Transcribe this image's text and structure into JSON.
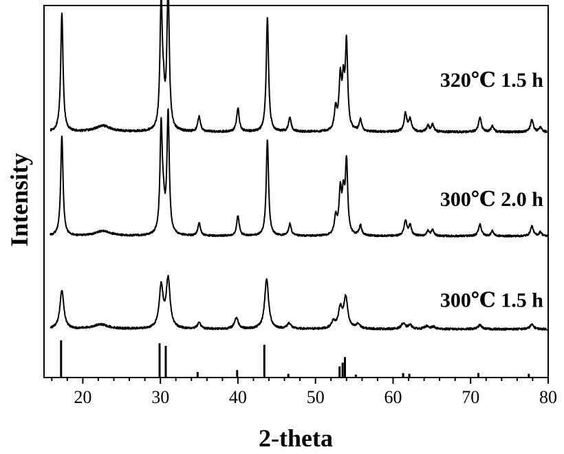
{
  "chart_data": {
    "type": "line",
    "title": "",
    "xlabel": "2-theta",
    "ylabel": "Intensity",
    "xlim": [
      15,
      80
    ],
    "xticks": [
      20,
      30,
      40,
      50,
      60,
      70,
      80
    ],
    "grid": false,
    "legend": "none",
    "series": [
      {
        "name": "320℃ 1.5 h",
        "label": "320℃ 1.5 h",
        "offset": 0.66,
        "amplitude": 0.32,
        "baseline_noise": 0.003,
        "peaks": [
          [
            17.3,
            1.0,
            0.18
          ],
          [
            22.6,
            0.05,
            1.2
          ],
          [
            30.1,
            1.06,
            0.18
          ],
          [
            30.4,
            0.22,
            0.2
          ],
          [
            31.0,
            1.2,
            0.18
          ],
          [
            35.0,
            0.13,
            0.2
          ],
          [
            40.0,
            0.2,
            0.2
          ],
          [
            43.8,
            0.96,
            0.18
          ],
          [
            46.7,
            0.12,
            0.2
          ],
          [
            52.6,
            0.18,
            0.2
          ],
          [
            53.2,
            0.42,
            0.2
          ],
          [
            53.6,
            0.35,
            0.18
          ],
          [
            54.0,
            0.72,
            0.18
          ],
          [
            55.8,
            0.1,
            0.2
          ],
          [
            61.6,
            0.15,
            0.22
          ],
          [
            62.2,
            0.1,
            0.22
          ],
          [
            64.5,
            0.05,
            0.2
          ],
          [
            65.1,
            0.06,
            0.2
          ],
          [
            71.2,
            0.12,
            0.22
          ],
          [
            72.8,
            0.05,
            0.2
          ],
          [
            77.9,
            0.1,
            0.22
          ],
          [
            79.0,
            0.04,
            0.2
          ]
        ]
      },
      {
        "name": "300℃ 2.0 h",
        "label": "300℃ 2.0 h",
        "offset": 0.38,
        "amplitude": 0.27,
        "baseline_noise": 0.003,
        "peaks": [
          [
            17.3,
            1.0,
            0.18
          ],
          [
            22.6,
            0.05,
            1.2
          ],
          [
            30.1,
            1.06,
            0.18
          ],
          [
            30.4,
            0.22,
            0.2
          ],
          [
            31.0,
            1.2,
            0.18
          ],
          [
            35.0,
            0.13,
            0.2
          ],
          [
            40.0,
            0.2,
            0.2
          ],
          [
            43.8,
            0.96,
            0.18
          ],
          [
            46.7,
            0.12,
            0.2
          ],
          [
            52.6,
            0.18,
            0.2
          ],
          [
            53.2,
            0.42,
            0.2
          ],
          [
            53.6,
            0.35,
            0.18
          ],
          [
            54.0,
            0.72,
            0.18
          ],
          [
            55.8,
            0.1,
            0.2
          ],
          [
            61.6,
            0.15,
            0.22
          ],
          [
            62.2,
            0.1,
            0.22
          ],
          [
            64.5,
            0.05,
            0.2
          ],
          [
            65.1,
            0.06,
            0.2
          ],
          [
            71.2,
            0.12,
            0.22
          ],
          [
            72.8,
            0.05,
            0.2
          ],
          [
            77.9,
            0.1,
            0.22
          ],
          [
            79.0,
            0.04,
            0.2
          ]
        ]
      },
      {
        "name": "300℃ 1.5 h",
        "label": "300℃ 1.5 h",
        "offset": 0.13,
        "amplitude": 0.15,
        "baseline_noise": 0.006,
        "peaks": [
          [
            17.3,
            0.7,
            0.3
          ],
          [
            22.3,
            0.08,
            1.2
          ],
          [
            30.1,
            0.75,
            0.3
          ],
          [
            31.0,
            0.88,
            0.3
          ],
          [
            35.0,
            0.1,
            0.3
          ],
          [
            39.8,
            0.2,
            0.3
          ],
          [
            43.7,
            0.9,
            0.3
          ],
          [
            46.6,
            0.1,
            0.3
          ],
          [
            52.3,
            0.12,
            0.3
          ],
          [
            53.2,
            0.35,
            0.3
          ],
          [
            53.9,
            0.55,
            0.3
          ],
          [
            55.5,
            0.08,
            0.3
          ],
          [
            61.3,
            0.1,
            0.3
          ],
          [
            62.2,
            0.07,
            0.3
          ],
          [
            64.3,
            0.05,
            0.3
          ],
          [
            65.2,
            0.04,
            0.3
          ],
          [
            71.2,
            0.07,
            0.3
          ],
          [
            77.9,
            0.08,
            0.3
          ]
        ]
      }
    ],
    "reference_lines": {
      "base": 0.0,
      "top": 0.1,
      "sticks": [
        [
          17.2,
          1.0
        ],
        [
          29.9,
          0.92
        ],
        [
          30.7,
          0.85
        ],
        [
          34.8,
          0.15
        ],
        [
          39.9,
          0.2
        ],
        [
          43.4,
          0.88
        ],
        [
          46.5,
          0.1
        ],
        [
          53.1,
          0.3
        ],
        [
          53.5,
          0.4
        ],
        [
          53.8,
          0.55
        ],
        [
          55.2,
          0.08
        ],
        [
          61.3,
          0.12
        ],
        [
          62.1,
          0.1
        ],
        [
          71.0,
          0.12
        ],
        [
          77.5,
          0.1
        ]
      ]
    },
    "ylim": [
      0,
      1
    ]
  }
}
